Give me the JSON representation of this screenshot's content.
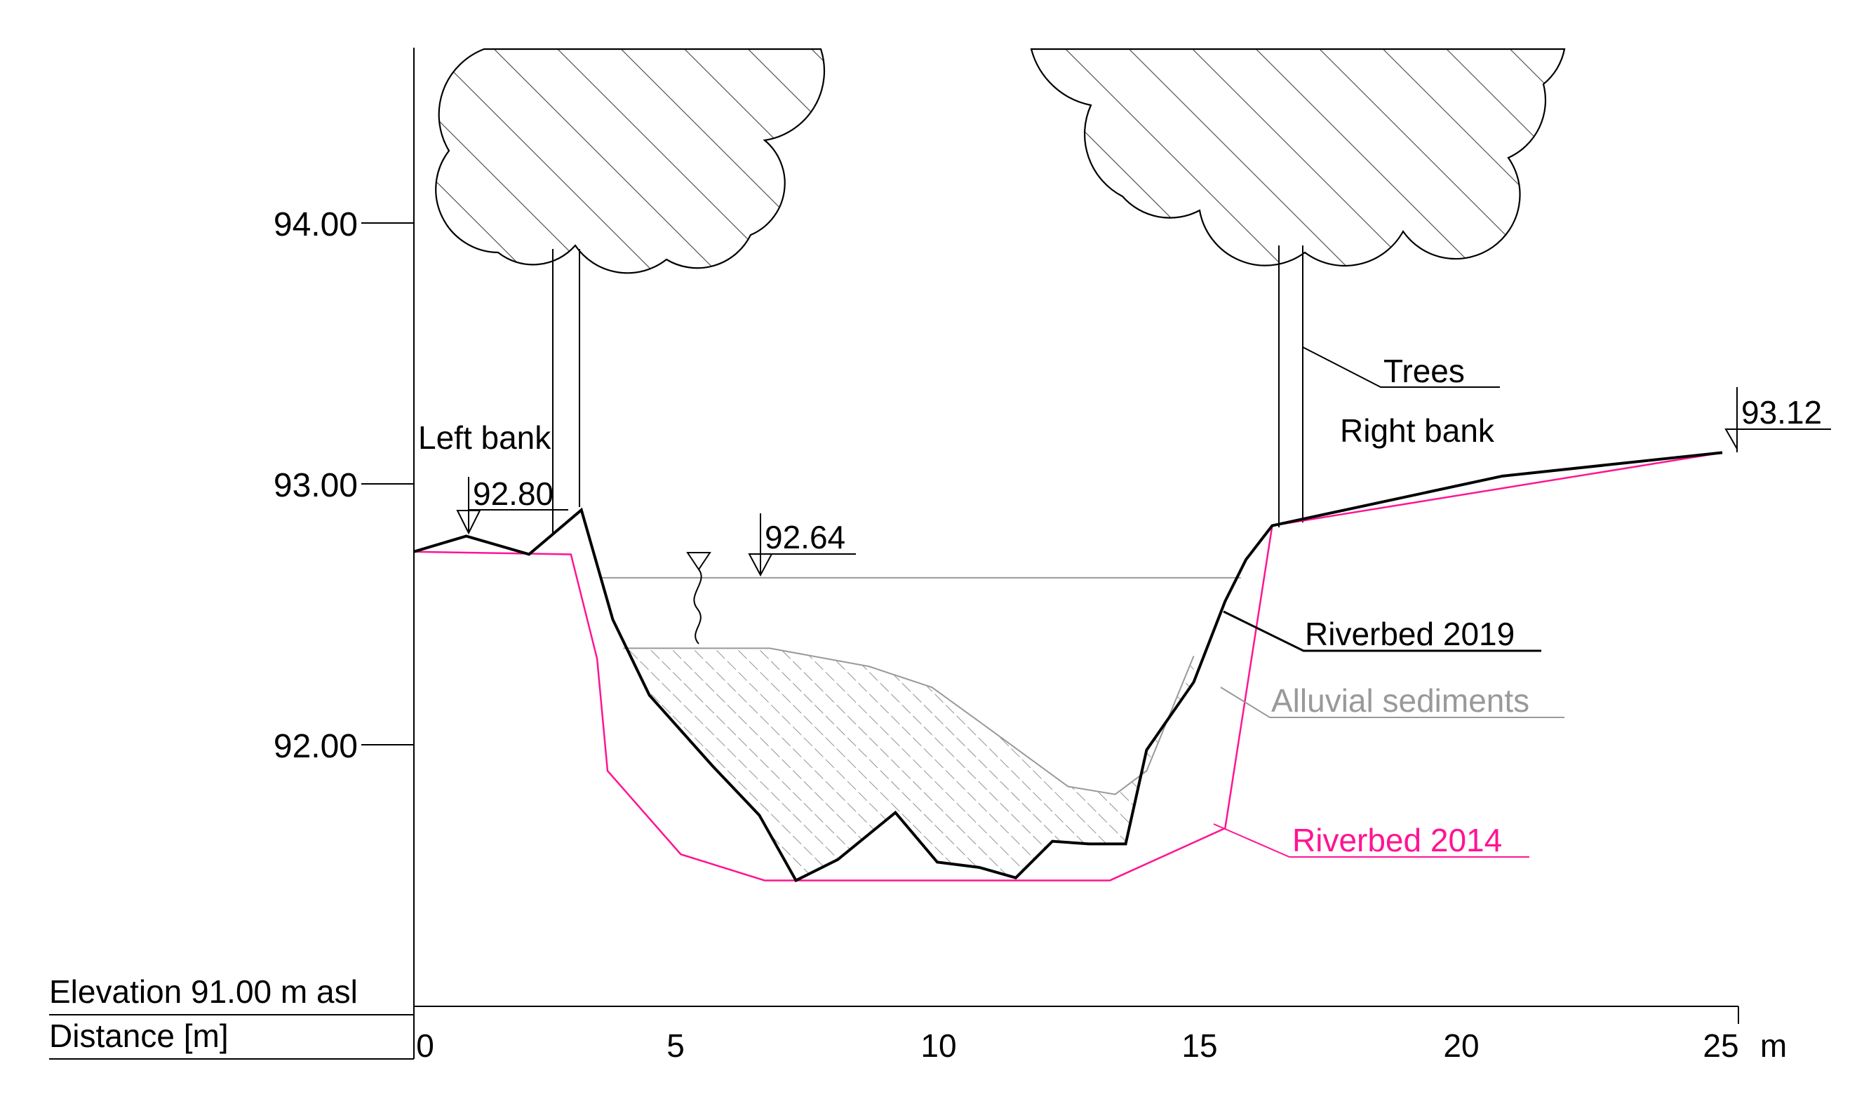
{
  "axes": {
    "elevation_caption": "Elevation 91.00 m asl",
    "distance_caption": "Distance [m]",
    "distance_unit": "m",
    "y_ticks": [
      "92.00",
      "93.00",
      "94.00"
    ],
    "x_ticks": [
      "0",
      "5",
      "10",
      "15",
      "20",
      "25"
    ]
  },
  "labels": {
    "left_bank": "Left bank",
    "right_bank": "Right bank",
    "trees": "Trees",
    "riverbed_2019": "Riverbed 2019",
    "riverbed_2014": "Riverbed 2014",
    "alluvial_sediments": "Alluvial sediments"
  },
  "levels": {
    "left_bank": "92.80",
    "water_surface": "92.64",
    "right_bank": "93.12"
  },
  "colors": {
    "riverbed_2019": "#000000",
    "riverbed_2014": "#ff1493",
    "sediment": "#999999",
    "water_line": "#999999"
  },
  "chart_data": {
    "type": "line",
    "x_unit": "m",
    "y_unit": "m asl",
    "xlim": [
      0,
      25
    ],
    "ylim": [
      91,
      94.5
    ],
    "series": [
      {
        "name": "Riverbed 2019",
        "x": [
          0,
          1,
          2.2,
          3.2,
          3.8,
          4.5,
          5.7,
          6.6,
          7.3,
          8.1,
          9.2,
          10.0,
          10.8,
          11.5,
          12.2,
          12.9,
          13.6,
          14.0,
          14.9,
          15.5,
          15.9,
          16.4,
          20.8,
          25.0
        ],
        "y": [
          92.74,
          92.8,
          92.73,
          92.9,
          92.48,
          92.19,
          91.92,
          91.73,
          91.48,
          91.56,
          91.74,
          91.55,
          91.53,
          91.49,
          91.63,
          91.62,
          91.62,
          91.98,
          92.24,
          92.55,
          92.71,
          92.84,
          93.03,
          93.12
        ]
      },
      {
        "name": "Riverbed 2014",
        "x": [
          0,
          3.0,
          3.5,
          3.7,
          5.1,
          6.7,
          13.3,
          15.5,
          16.4,
          25.0
        ],
        "y": [
          92.74,
          92.73,
          92.33,
          91.9,
          91.58,
          91.48,
          91.48,
          91.68,
          92.84,
          93.12
        ]
      }
    ],
    "water_level": 92.64,
    "sediment_top": {
      "x": [
        4.0,
        6.8,
        8.7,
        9.9,
        11.0,
        12.5,
        13.4,
        14.0,
        14.9
      ],
      "y": [
        92.37,
        92.37,
        92.3,
        92.22,
        92.06,
        91.84,
        91.81,
        91.9,
        92.34
      ]
    },
    "annotations": [
      "Left bank",
      "Right bank",
      "Trees",
      "Riverbed 2019",
      "Riverbed 2014",
      "Alluvial sediments",
      "92.80",
      "92.64",
      "93.12"
    ]
  }
}
